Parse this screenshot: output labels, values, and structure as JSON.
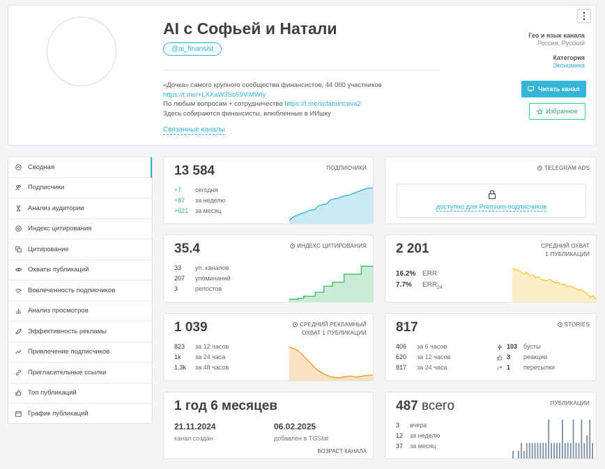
{
  "header": {
    "title": "AI с Софьей и Натали",
    "handle": "@ai_finansist",
    "description": [
      {
        "text": "«Дочка» самого крупного сообщества финансистов, 44 000 участников",
        "link": ""
      },
      {
        "text": "",
        "link": "https://t.me/+LXXaW3So59ViMWIy"
      },
      {
        "text": "По любым вопросам + сотрудничество ",
        "link": "https://t.me/sofaburtceva2"
      },
      {
        "text": "Здесь собираются финансисты, влюбленные в ИИшку",
        "link": ""
      }
    ],
    "related_label": "Связанные каналы",
    "geo_label": "Гео и язык канала",
    "geo_value": "Россия, Русский",
    "category_label": "Категория",
    "category_value": "Экономика",
    "read_button": "Читать канал",
    "fav_button": "Избранное"
  },
  "sidebar": {
    "items": [
      {
        "label": "Сводная",
        "icon": "dashboard-icon"
      },
      {
        "label": "Подписчики",
        "icon": "users-icon"
      },
      {
        "label": "Анализ аудитории",
        "icon": "hourglass-icon"
      },
      {
        "label": "Индекс цитирования",
        "icon": "at-icon"
      },
      {
        "label": "Цитирование",
        "icon": "copy-icon"
      },
      {
        "label": "Охваты публикаций",
        "icon": "eye-icon"
      },
      {
        "label": "Вовлеченность подписчиков",
        "icon": "engagement-icon"
      },
      {
        "label": "Анализ просмотров",
        "icon": "bar-chart-icon"
      },
      {
        "label": "Эффективность рекламы",
        "icon": "rocket-icon"
      },
      {
        "label": "Привлечение подписчиков",
        "icon": "trend-icon"
      },
      {
        "label": "Пригласительные ссылки",
        "icon": "link-icon"
      },
      {
        "label": "Топ публикаций",
        "icon": "thumb-up-icon"
      },
      {
        "label": "График публикаций",
        "icon": "calendar-icon"
      }
    ]
  },
  "subscribers": {
    "title": "ПОДПИСЧИКИ",
    "value": "13 584",
    "rows": [
      {
        "n": "+7",
        "t": "сегодня"
      },
      {
        "n": "+87",
        "t": "за неделю"
      },
      {
        "n": "+621",
        "t": "за месяц"
      }
    ],
    "color": "#36b3d9",
    "series": [
      13000,
      13050,
      13080,
      13100,
      13120,
      13140,
      13160,
      13180,
      13190,
      13200,
      13260,
      13280,
      13290,
      13300,
      13360,
      13380,
      13390,
      13400,
      13420,
      13440,
      13450,
      13460,
      13480,
      13500,
      13520,
      13540,
      13560,
      13575,
      13580,
      13584
    ]
  },
  "telegram_ads": {
    "title": "TELEGRAM ADS",
    "premium_text": "доступно для Premium-подписчиков"
  },
  "citation": {
    "title": "ИНДЕКС ЦИТИРОВАНИЯ",
    "value": "35.4",
    "rows": [
      {
        "n": "33",
        "t": "уп. каналов"
      },
      {
        "n": "207",
        "t": "упоминаний"
      },
      {
        "n": "3",
        "t": "репостов"
      }
    ],
    "color": "#3cbf64",
    "series": [
      2,
      2,
      2,
      3,
      3,
      5,
      5,
      5,
      5,
      9,
      9,
      9,
      15,
      15,
      15,
      19,
      19,
      19,
      19,
      27,
      27,
      27,
      27,
      27,
      27,
      35,
      35,
      35,
      35,
      35.4
    ]
  },
  "reach": {
    "title_line1": "СРЕДНИЙ ОХВАТ",
    "title_line2": "1 ПУБЛИКАЦИИ",
    "value": "2 201",
    "err": "16.2%",
    "err_label": "ERR",
    "err24": "7.7%",
    "err24_label": "ERR",
    "err24_sub": "24",
    "color": "#f5c73b",
    "series": [
      2300,
      2280,
      2260,
      2200,
      2150,
      2200,
      2100,
      2120,
      2050,
      2080,
      2000,
      1980,
      1960,
      2000,
      1950,
      1900,
      1920,
      1850,
      1870,
      1800,
      1820,
      1780,
      1750,
      1700,
      1720,
      1650,
      1600,
      1500,
      1550,
      1450
    ]
  },
  "ad_reach": {
    "title_line1": "СРЕДНИЙ РЕКЛАМНЫЙ",
    "title_line2": "ОХВАТ 1 ПУБЛИКАЦИИ",
    "value": "1 039",
    "rows": [
      {
        "n": "823",
        "t": "за 12 часов"
      },
      {
        "n": "1k",
        "t": "за 24 часа"
      },
      {
        "n": "1.3k",
        "t": "за 48 часов"
      }
    ],
    "color": "#f39a2b",
    "series": [
      1500,
      1490,
      1470,
      1440,
      1400,
      1350,
      1300,
      1250,
      1200,
      1150,
      1110,
      1080,
      1050,
      1030,
      1010,
      1000,
      990,
      985,
      990,
      1000,
      1010,
      1015,
      1010,
      1000,
      1005,
      1010,
      1020,
      1025,
      1030,
      1035
    ]
  },
  "stories": {
    "title": "STORIES",
    "value": "817",
    "rows": [
      {
        "n": "406",
        "t": "за 6 часов"
      },
      {
        "n": "620",
        "t": "за 12 часов"
      },
      {
        "n": "817",
        "t": "за 24 часа"
      }
    ],
    "right_rows": [
      {
        "icon": "boost-icon",
        "n": "103",
        "t": "бусты"
      },
      {
        "icon": "like-icon",
        "n": "3",
        "t": "реакции"
      },
      {
        "icon": "forward-icon",
        "n": "1",
        "t": "пересылки"
      }
    ]
  },
  "age": {
    "value": "1 год 6 месяцев",
    "created_date": "21.11.2024",
    "created_label": "канал создан",
    "added_date": "06.02.2025",
    "added_label": "добавлен в TGStat",
    "footer": "ВОЗРАСТ КАНАЛА"
  },
  "publications": {
    "title": "ПУБЛИКАЦИИ",
    "value": "487",
    "value_suffix": " всего",
    "rows": [
      {
        "n": "3",
        "t": "вчера"
      },
      {
        "n": "12",
        "t": "за неделю"
      },
      {
        "n": "37",
        "t": "за месяц"
      }
    ],
    "bars": [
      1,
      0,
      1,
      2,
      1,
      2,
      2,
      2,
      2,
      2,
      2,
      2,
      2,
      5,
      2,
      2,
      2,
      2,
      5,
      2,
      2,
      2,
      5,
      2,
      2,
      5,
      2,
      3,
      5,
      2
    ]
  }
}
